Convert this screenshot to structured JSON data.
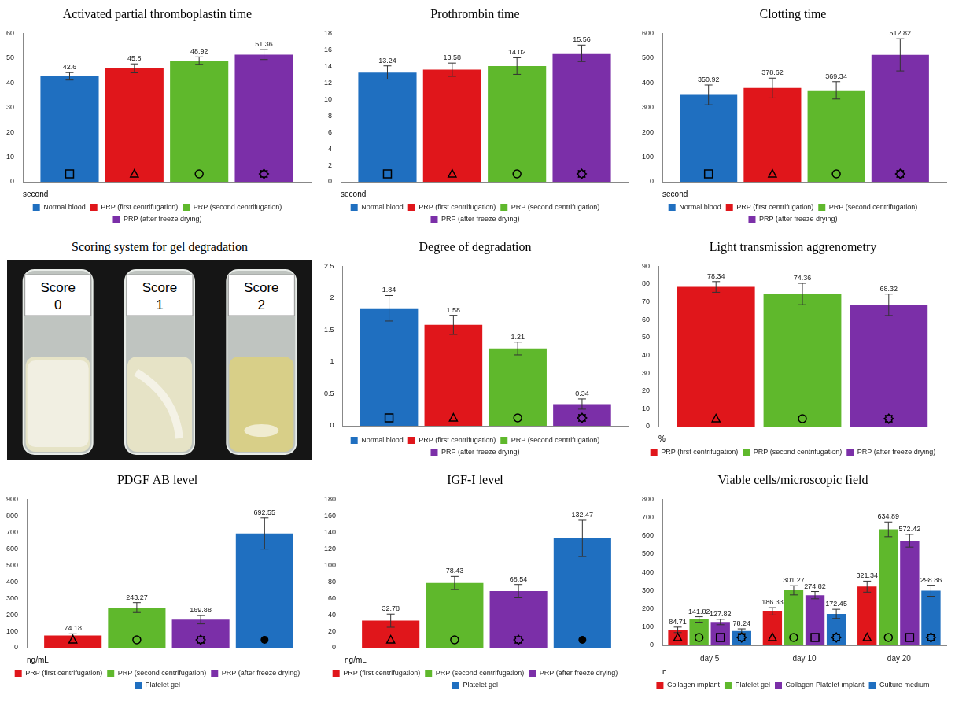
{
  "chart_data": [
    {
      "type": "bar",
      "title": "Activated partial thromboplastin time",
      "ylabel": "second",
      "categories": [
        null
      ],
      "series": [
        {
          "name": "Normal blood",
          "color": "#1f6fc0",
          "marker": "square",
          "values": [
            42.6
          ],
          "errors": [
            1.5
          ]
        },
        {
          "name": "PRP (first centrifugation)",
          "color": "#e0161b",
          "marker": "triangle",
          "values": [
            45.8
          ],
          "errors": [
            1.8
          ]
        },
        {
          "name": "PRP (second centrifugation)",
          "color": "#5fb82c",
          "marker": "circle",
          "values": [
            48.92
          ],
          "errors": [
            1.5
          ]
        },
        {
          "name": "PRP (after freeze drying)",
          "color": "#7b2fa8",
          "marker": "gear",
          "values": [
            51.36
          ],
          "errors": [
            2
          ]
        }
      ],
      "ylim": [
        0,
        60
      ],
      "yticks": [
        0,
        10,
        20,
        30,
        40,
        50,
        60
      ],
      "grid": false,
      "legend": "bottom",
      "data_labels": true,
      "tick_labels": "y"
    },
    {
      "type": "bar",
      "title": "Prothrombin time",
      "ylabel": "second",
      "categories": [
        null
      ],
      "series": [
        {
          "name": "Normal blood",
          "color": "#1f6fc0",
          "marker": "square",
          "values": [
            13.24
          ],
          "errors": [
            0.8
          ]
        },
        {
          "name": "PRP (first centrifugation)",
          "color": "#e0161b",
          "marker": "triangle",
          "values": [
            13.58
          ],
          "errors": [
            0.8
          ]
        },
        {
          "name": "PRP (second centrifugation)",
          "color": "#5fb82c",
          "marker": "circle",
          "values": [
            14.02
          ],
          "errors": [
            1
          ]
        },
        {
          "name": "PRP (after freeze drying)",
          "color": "#7b2fa8",
          "marker": "gear",
          "values": [
            15.56
          ],
          "errors": [
            1
          ]
        }
      ],
      "ylim": [
        0,
        18
      ],
      "yticks": [
        0,
        2,
        4,
        6,
        8,
        10,
        12,
        14,
        16,
        18
      ],
      "grid": false,
      "legend": "bottom",
      "data_labels": true,
      "tick_labels": "y"
    },
    {
      "type": "bar",
      "title": "Clotting time",
      "ylabel": "second",
      "categories": [
        null
      ],
      "series": [
        {
          "name": "Normal blood",
          "color": "#1f6fc0",
          "marker": "square",
          "values": [
            350.92
          ],
          "errors": [
            40
          ]
        },
        {
          "name": "PRP (first centrifugation)",
          "color": "#e0161b",
          "marker": "triangle",
          "values": [
            378.62
          ],
          "errors": [
            40
          ]
        },
        {
          "name": "PRP (second centrifugation)",
          "color": "#5fb82c",
          "marker": "circle",
          "values": [
            369.34
          ],
          "errors": [
            35
          ]
        },
        {
          "name": "PRP (after freeze drying)",
          "color": "#7b2fa8",
          "marker": "gear",
          "values": [
            512.82
          ],
          "errors": [
            65
          ]
        }
      ],
      "ylim": [
        0,
        600
      ],
      "yticks": [
        0,
        100,
        200,
        300,
        400,
        500,
        600
      ],
      "grid": false,
      "legend": "bottom",
      "data_labels": true,
      "tick_labels": "y"
    },
    {
      "type": "bar",
      "title": "Degree of degradation",
      "categories": [
        null
      ],
      "series": [
        {
          "name": "Normal blood",
          "color": "#1f6fc0",
          "marker": "square",
          "values": [
            1.84
          ],
          "errors": [
            0.2
          ]
        },
        {
          "name": "PRP (first centrifugation)",
          "color": "#e0161b",
          "marker": "triangle",
          "values": [
            1.58
          ],
          "errors": [
            0.15
          ]
        },
        {
          "name": "PRP (second centrifugation)",
          "color": "#5fb82c",
          "marker": "circle",
          "values": [
            1.21
          ],
          "errors": [
            0.1
          ]
        },
        {
          "name": "PRP (after freeze drying)",
          "color": "#7b2fa8",
          "marker": "gear",
          "values": [
            0.34
          ],
          "errors": [
            0.08
          ]
        }
      ],
      "ylim": [
        0,
        2.5
      ],
      "yticks": [
        0,
        0.5,
        1,
        1.5,
        2,
        2.5
      ],
      "grid": false,
      "legend": "bottom",
      "data_labels": true,
      "tick_labels": "y"
    },
    {
      "type": "bar",
      "title": "Light transmission aggrenometry",
      "ylabel": "%",
      "categories": [
        null
      ],
      "series": [
        {
          "name": "PRP (first centrifugation)",
          "color": "#e0161b",
          "marker": "triangle",
          "values": [
            78.34
          ],
          "errors": [
            3
          ]
        },
        {
          "name": "PRP (second centrifugation)",
          "color": "#5fb82c",
          "marker": "circle",
          "values": [
            74.36
          ],
          "errors": [
            6
          ]
        },
        {
          "name": "PRP (after freeze drying)",
          "color": "#7b2fa8",
          "marker": "gear",
          "values": [
            68.32
          ],
          "errors": [
            6
          ]
        }
      ],
      "ylim": [
        0,
        90
      ],
      "yticks": [
        0,
        10,
        20,
        30,
        40,
        50,
        60,
        70,
        80,
        90
      ],
      "grid": false,
      "legend": "bottom",
      "data_labels": true,
      "tick_labels": "y"
    },
    {
      "type": "bar",
      "title": "PDGF AB level",
      "ylabel": "ng/mL",
      "categories": [
        null
      ],
      "series": [
        {
          "name": "PRP (first centrifugation)",
          "color": "#e0161b",
          "marker": "triangle",
          "values": [
            74.18
          ],
          "errors": [
            10
          ]
        },
        {
          "name": "PRP (second centrifugation)",
          "color": "#5fb82c",
          "marker": "circle",
          "values": [
            243.27
          ],
          "errors": [
            30
          ]
        },
        {
          "name": "PRP (after freeze drying)",
          "color": "#7b2fa8",
          "marker": "gear",
          "values": [
            169.88
          ],
          "errors": [
            25
          ]
        },
        {
          "name": "Platelet gel",
          "color": "#1f6fc0",
          "marker": "filled_circle",
          "values": [
            692.55
          ],
          "errors": [
            95
          ]
        }
      ],
      "ylim": [
        0,
        900
      ],
      "yticks": [
        0,
        100,
        200,
        300,
        400,
        500,
        600,
        700,
        800,
        900
      ],
      "grid": false,
      "legend": "bottom",
      "data_labels": true,
      "tick_labels": "y"
    },
    {
      "type": "bar",
      "title": "IGF-I level",
      "ylabel": "ng/mL",
      "categories": [
        null
      ],
      "series": [
        {
          "name": "PRP (first centrifugation)",
          "color": "#e0161b",
          "marker": "triangle",
          "values": [
            32.78
          ],
          "errors": [
            8
          ]
        },
        {
          "name": "PRP (second centrifugation)",
          "color": "#5fb82c",
          "marker": "circle",
          "values": [
            78.43
          ],
          "errors": [
            8
          ]
        },
        {
          "name": "PRP (after freeze drying)",
          "color": "#7b2fa8",
          "marker": "gear",
          "values": [
            68.54
          ],
          "errors": [
            8
          ]
        },
        {
          "name": "Platelet gel",
          "color": "#1f6fc0",
          "marker": "filled_circle",
          "values": [
            132.47
          ],
          "errors": [
            22
          ]
        }
      ],
      "ylim": [
        0,
        180
      ],
      "yticks": [
        0,
        20,
        40,
        60,
        80,
        100,
        120,
        140,
        160,
        180
      ],
      "grid": false,
      "legend": "bottom",
      "data_labels": true,
      "tick_labels": "y"
    },
    {
      "type": "bar",
      "title": "Viable cells/microscopic field",
      "ylabel": "n",
      "categories": [
        "day 5",
        "day 10",
        "day 20"
      ],
      "series": [
        {
          "name": "Collagen implant",
          "color": "#e0161b",
          "marker": "triangle",
          "values": [
            84.71,
            186.33,
            321.34
          ],
          "errors": [
            15,
            20,
            30
          ]
        },
        {
          "name": "Platelet gel",
          "color": "#5fb82c",
          "marker": "circle",
          "values": [
            141.82,
            301.27,
            634.89
          ],
          "errors": [
            15,
            25,
            40
          ]
        },
        {
          "name": "Collagen-Platelet implant",
          "color": "#7b2fa8",
          "marker": "square",
          "values": [
            127.82,
            274.82,
            572.42
          ],
          "errors": [
            15,
            20,
            35
          ]
        },
        {
          "name": "Culture medium",
          "color": "#1f6fc0",
          "marker": "gear",
          "values": [
            78.24,
            172.45,
            298.86
          ],
          "errors": [
            12,
            25,
            30
          ]
        }
      ],
      "ylim": [
        0,
        800
      ],
      "yticks": [
        0,
        100,
        200,
        300,
        400,
        500,
        600,
        700,
        800
      ],
      "grid": false,
      "legend": "bottom",
      "data_labels": true
    }
  ],
  "image_panel": {
    "title": "Scoring system for gel degradation",
    "labels": [
      "Score 0",
      "Score 1",
      "Score 2"
    ]
  }
}
